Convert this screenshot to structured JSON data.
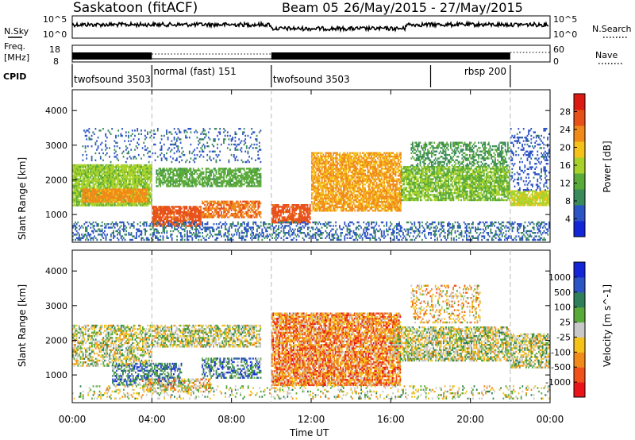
{
  "header": {
    "station": "Saskatoon (fitACF)",
    "beam_label": "Beam 05",
    "date_range": "26/May/2015 - 27/May/2015"
  },
  "noise_panel": {
    "left_label": "N.Sky",
    "right_label": "N.Search",
    "left_ticks": [
      "10^5",
      "10^0"
    ],
    "right_ticks": [
      "10^5",
      "10^0"
    ]
  },
  "freq_panel": {
    "left_label_1": "Freq.",
    "left_label_2": "[MHz]",
    "right_label": "Nave",
    "left_ticks": [
      "18",
      "8"
    ],
    "right_ticks": [
      "60",
      "0"
    ]
  },
  "cpid_panel": {
    "label": "CPID",
    "segments": [
      {
        "name": "twofsound 3503",
        "start_h": 0,
        "end_h": 4
      },
      {
        "name": "normal (fast) 151",
        "start_h": 4,
        "end_h": 10
      },
      {
        "name": "twofsound 3503",
        "start_h": 10,
        "end_h": 18
      },
      {
        "name": "rbsp 200",
        "start_h": 18,
        "end_h": 22
      }
    ]
  },
  "chart_data": [
    {
      "type": "heatmap",
      "title": "",
      "xlabel": "",
      "ylabel": "Slant Range [km]",
      "xlim_hours": [
        0,
        24
      ],
      "ylim": [
        200,
        4600
      ],
      "yticks": [
        1000,
        2000,
        3000,
        4000
      ],
      "colorbar_label": "Power [dB]",
      "colorbar_ticks": [
        "4",
        "8",
        "12",
        "16",
        "20",
        "24",
        "28"
      ],
      "colorbar_range": [
        0,
        30
      ],
      "palette": [
        "#1226d8",
        "#2c54c4",
        "#3a8a5a",
        "#5aaa3a",
        "#a8d22a",
        "#f5c21a",
        "#f08a1a",
        "#e8501a",
        "#dc1a14"
      ],
      "scatter_bands": [
        {
          "start_h": 0.0,
          "end_h": 4.0,
          "range_km": [
            1250,
            2450
          ],
          "value": 14,
          "density": 0.9
        },
        {
          "start_h": 0.5,
          "end_h": 3.8,
          "range_km": [
            1350,
            1750
          ],
          "value": 22,
          "density": 0.9
        },
        {
          "start_h": 4.0,
          "end_h": 6.5,
          "range_km": [
            650,
            1250
          ],
          "value": 26,
          "density": 0.85
        },
        {
          "start_h": 4.2,
          "end_h": 9.5,
          "range_km": [
            1800,
            2350
          ],
          "value": 11,
          "density": 0.7
        },
        {
          "start_h": 6.5,
          "end_h": 9.5,
          "range_km": [
            900,
            1400
          ],
          "value": 24,
          "density": 0.7
        },
        {
          "start_h": 10.0,
          "end_h": 12.0,
          "range_km": [
            750,
            1300
          ],
          "value": 26,
          "density": 0.8
        },
        {
          "start_h": 12.0,
          "end_h": 16.5,
          "range_km": [
            1100,
            2800
          ],
          "value": 21,
          "density": 0.8
        },
        {
          "start_h": 16.5,
          "end_h": 22.0,
          "range_km": [
            1400,
            2400
          ],
          "value": 13,
          "density": 0.8
        },
        {
          "start_h": 17.0,
          "end_h": 22.0,
          "range_km": [
            2400,
            3100
          ],
          "value": 9,
          "density": 0.45
        },
        {
          "start_h": 22.0,
          "end_h": 24.0,
          "range_km": [
            1250,
            1700
          ],
          "value": 16,
          "density": 0.85
        },
        {
          "start_h": 22.0,
          "end_h": 24.0,
          "range_km": [
            1700,
            3500
          ],
          "value": 4,
          "density": 0.25
        },
        {
          "start_h": 0.0,
          "end_h": 24.0,
          "range_km": [
            250,
            800
          ],
          "value": 5,
          "density": 0.35
        },
        {
          "start_h": 0.5,
          "end_h": 9.5,
          "range_km": [
            2500,
            3500
          ],
          "value": 5,
          "density": 0.15
        }
      ]
    },
    {
      "type": "heatmap",
      "title": "",
      "xlabel": "Time UT",
      "ylabel": "Slant Range [km]",
      "xlim_hours": [
        0,
        24
      ],
      "ylim": [
        200,
        4600
      ],
      "yticks": [
        1000,
        2000,
        3000,
        4000
      ],
      "xticks": [
        "00:00",
        "04:00",
        "08:00",
        "12:00",
        "16:00",
        "20:00",
        "00:00"
      ],
      "colorbar_label": "Velocity [m s^-1]",
      "colorbar_ticks": [
        "-1000",
        "-500",
        "-100",
        "-25",
        "25",
        "100",
        "500",
        "1000"
      ],
      "palette": [
        "#e8141a",
        "#f0501a",
        "#f08a1a",
        "#f5c21a",
        "#c8c8c8",
        "#5aaa3a",
        "#2f7f5a",
        "#2c54c4",
        "#1226d8"
      ],
      "scatter_bands": [
        {
          "start_h": 0.0,
          "end_h": 4.0,
          "range_km": [
            1250,
            2450
          ],
          "value": 4,
          "density": 0.55
        },
        {
          "start_h": 4.0,
          "end_h": 9.5,
          "range_km": [
            1800,
            2450
          ],
          "value": 4,
          "density": 0.6
        },
        {
          "start_h": 2.0,
          "end_h": 5.5,
          "range_km": [
            700,
            1350
          ],
          "value": 6,
          "density": 0.55
        },
        {
          "start_h": 6.5,
          "end_h": 9.5,
          "range_km": [
            900,
            1500
          ],
          "value": 6,
          "density": 0.55
        },
        {
          "start_h": 3.5,
          "end_h": 7.0,
          "range_km": [
            500,
            900
          ],
          "value": 3,
          "density": 0.45
        },
        {
          "start_h": 10.0,
          "end_h": 16.5,
          "range_km": [
            700,
            2800
          ],
          "value": 2,
          "density": 0.8
        },
        {
          "start_h": 16.0,
          "end_h": 22.0,
          "range_km": [
            1400,
            2400
          ],
          "value": 4,
          "density": 0.65
        },
        {
          "start_h": 17.0,
          "end_h": 20.5,
          "range_km": [
            2500,
            3600
          ],
          "value": 3,
          "density": 0.3
        },
        {
          "start_h": 22.0,
          "end_h": 24.0,
          "range_km": [
            1200,
            2200
          ],
          "value": 4,
          "density": 0.6
        },
        {
          "start_h": 0.0,
          "end_h": 24.0,
          "range_km": [
            300,
            700
          ],
          "value": 4,
          "density": 0.2
        }
      ]
    }
  ]
}
